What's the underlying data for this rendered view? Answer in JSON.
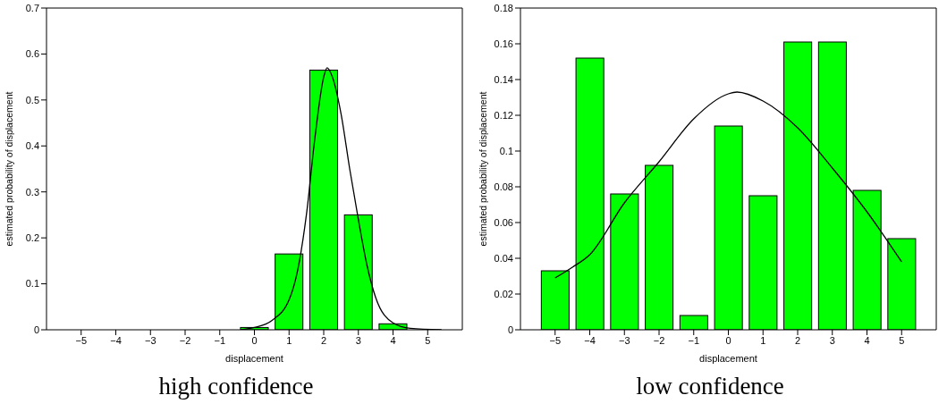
{
  "chart_data": [
    {
      "type": "bar",
      "title": "high confidence",
      "xlabel": "displacement",
      "ylabel": "estimated probability of displacement",
      "series": [
        {
          "color": "#00ff00",
          "x": [
            -5,
            -4,
            -3,
            -2,
            -1,
            0,
            1,
            2,
            3,
            4,
            5
          ],
          "values": [
            0,
            0,
            0,
            0,
            0,
            0.005,
            0.165,
            0.565,
            0.25,
            0.013,
            0
          ]
        },
        {
          "type": "line",
          "color": "#000000",
          "x": [
            -0.4,
            0,
            0.5,
            1,
            1.25,
            1.5,
            1.75,
            2,
            2.1,
            2.25,
            2.5,
            2.75,
            3,
            3.25,
            3.5,
            4,
            4.5,
            5.4
          ],
          "values": [
            0,
            0.005,
            0.02,
            0.065,
            0.13,
            0.25,
            0.42,
            0.55,
            0.57,
            0.55,
            0.47,
            0.35,
            0.24,
            0.14,
            0.07,
            0.015,
            0.003,
            0
          ]
        }
      ],
      "xlim": [
        -6,
        6
      ],
      "xticks": [
        {
          "value": -5,
          "label": "−5"
        },
        {
          "value": -4,
          "label": "−4"
        },
        {
          "value": -3,
          "label": "−3"
        },
        {
          "value": -2,
          "label": "−2"
        },
        {
          "value": -1,
          "label": "−1"
        },
        0,
        1,
        2,
        3,
        4,
        5
      ],
      "ylim": [
        0,
        0.7
      ],
      "yticks": [
        0,
        0.1,
        0.2,
        0.3,
        0.4,
        0.5,
        0.6,
        0.7
      ],
      "marker": "none",
      "grid": false
    },
    {
      "type": "bar",
      "title": "low confidence",
      "xlabel": "displacement",
      "ylabel": "estimated probability of displacement",
      "series": [
        {
          "color": "#00ff00",
          "x": [
            -5,
            -4,
            -3,
            -2,
            -1,
            0,
            1,
            2,
            3,
            4,
            5
          ],
          "values": [
            0.033,
            0.152,
            0.076,
            0.092,
            0.008,
            0.114,
            0.075,
            0.161,
            0.161,
            0.078,
            0.051
          ]
        },
        {
          "type": "line",
          "color": "#000000",
          "x": [
            -5,
            -4.5,
            -4,
            -3,
            -2,
            -1,
            0,
            0.25,
            1,
            2,
            3,
            4,
            5
          ],
          "values": [
            0.029,
            0.035,
            0.042,
            0.071,
            0.094,
            0.118,
            0.132,
            0.133,
            0.128,
            0.113,
            0.0905,
            0.066,
            0.038
          ]
        }
      ],
      "xlim": [
        -6,
        6
      ],
      "xticks": [
        {
          "value": -5,
          "label": "−5"
        },
        {
          "value": -4,
          "label": "−4"
        },
        {
          "value": -3,
          "label": "−3"
        },
        {
          "value": -2,
          "label": "−2"
        },
        {
          "value": -1,
          "label": "−1"
        },
        0,
        1,
        2,
        3,
        4,
        5
      ],
      "ylim": [
        0,
        0.18
      ],
      "yticks": [
        0,
        0.02,
        0.04,
        0.06,
        0.08,
        0.1,
        0.12,
        0.14,
        0.16,
        0.18
      ],
      "marker": "none",
      "grid": false
    }
  ]
}
